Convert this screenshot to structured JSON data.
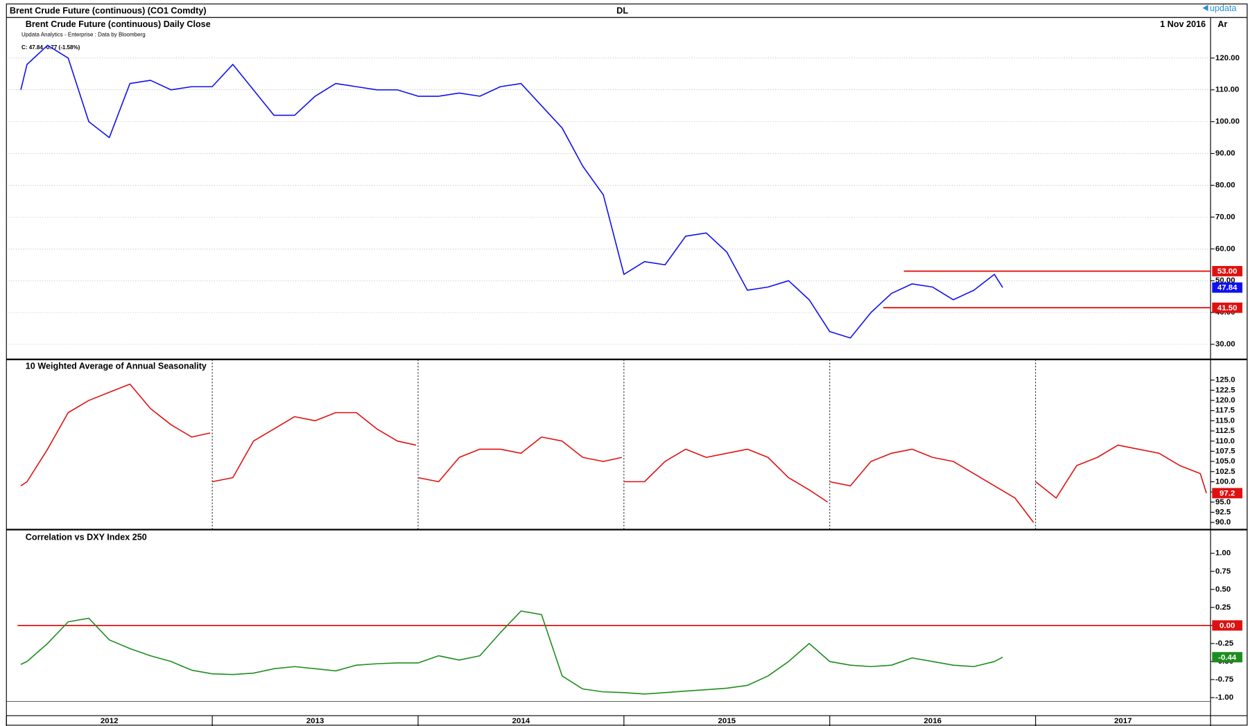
{
  "header": {
    "title": "Brent Crude Future (continuous) (CO1 Comdty)",
    "code": "DL",
    "brand": "updata"
  },
  "chart_data": [
    {
      "type": "line",
      "title": "Brent Crude Future (continuous) Daily Close",
      "date_label": "1 Nov 2016",
      "right_label": "Ar",
      "source": "Updata Analytics - Enterprise : Data by Bloomberg",
      "quote": "C: 47.84 -0.77 (-1.58%)",
      "color": "#1010ee",
      "grid": true,
      "xlim": [
        2012,
        2017.85
      ],
      "ylim": [
        25.25,
        128.75
      ],
      "yticks": [
        {
          "value": 30,
          "label": "30.00"
        },
        {
          "value": 40,
          "label": "40.00"
        },
        {
          "value": 50,
          "label": "50.00"
        },
        {
          "value": 60,
          "label": "60.00"
        },
        {
          "value": 70,
          "label": "70.00"
        },
        {
          "value": 80,
          "label": "80.00"
        },
        {
          "value": 90,
          "label": "90.00"
        },
        {
          "value": 100,
          "label": "100.00"
        },
        {
          "value": 110,
          "label": "110.00"
        },
        {
          "value": 120,
          "label": "120.00"
        }
      ],
      "x": [
        2012.07,
        2012.1,
        2012.2,
        2012.3,
        2012.4,
        2012.5,
        2012.6,
        2012.7,
        2012.8,
        2012.9,
        2013.0,
        2013.1,
        2013.2,
        2013.3,
        2013.4,
        2013.5,
        2013.6,
        2013.7,
        2013.8,
        2013.9,
        2014.0,
        2014.1,
        2014.2,
        2014.3,
        2014.4,
        2014.5,
        2014.6,
        2014.7,
        2014.8,
        2014.9,
        2015.0,
        2015.1,
        2015.2,
        2015.3,
        2015.4,
        2015.5,
        2015.6,
        2015.7,
        2015.8,
        2015.9,
        2016.0,
        2016.1,
        2016.2,
        2016.3,
        2016.4,
        2016.5,
        2016.6,
        2016.7,
        2016.8,
        2016.84
      ],
      "values": [
        110,
        118,
        124,
        120,
        100,
        95,
        112,
        113,
        110,
        111,
        111,
        118,
        110,
        102,
        102,
        108,
        112,
        111,
        110,
        110,
        108,
        108,
        109,
        108,
        111,
        112,
        105,
        98,
        86,
        77,
        52,
        56,
        55,
        64,
        65,
        59,
        47,
        48,
        50,
        44,
        34,
        32,
        40,
        46,
        49,
        48,
        44,
        47,
        52,
        47.84
      ],
      "hlines": [
        {
          "value": 53,
          "label": "53.00",
          "x0": 2016.36
        },
        {
          "value": 41.5,
          "label": "41.50",
          "x0": 2016.26
        }
      ]
    },
    {
      "type": "line",
      "title": "10 Weighted Average of Annual Seasonality",
      "color": "#e01010",
      "vgrid": true,
      "xlim": [
        2012,
        2017.85
      ],
      "ylim": [
        88.24,
        126.56
      ],
      "xticks": [
        2012,
        2013,
        2014,
        2015,
        2016,
        2017
      ],
      "yticks": [
        {
          "value": 90,
          "label": "90.0"
        },
        92.5,
        {
          "value": 95,
          "label": "95.0"
        },
        97.5,
        {
          "value": 100,
          "label": "100.0"
        },
        102.5,
        {
          "value": 105,
          "label": "105.0"
        },
        107.5,
        {
          "value": 110,
          "label": "110.0"
        },
        112.5,
        {
          "value": 115,
          "label": "115.0"
        },
        117.5,
        {
          "value": 120,
          "label": "120.0"
        },
        122.5,
        {
          "value": 125,
          "label": "125.0"
        }
      ],
      "x": [
        2012.07,
        2012.1,
        2012.2,
        2012.3,
        2012.4,
        2012.5,
        2012.6,
        2012.7,
        2012.8,
        2012.9,
        2012.99,
        2012.995,
        2013.0,
        2013.1,
        2013.2,
        2013.3,
        2013.4,
        2013.5,
        2013.6,
        2013.7,
        2013.8,
        2013.9,
        2013.99,
        2013.995,
        2014.0,
        2014.1,
        2014.2,
        2014.3,
        2014.4,
        2014.5,
        2014.6,
        2014.7,
        2014.8,
        2014.9,
        2014.99,
        2014.995,
        2015.0,
        2015.1,
        2015.2,
        2015.3,
        2015.4,
        2015.5,
        2015.6,
        2015.7,
        2015.8,
        2015.9,
        2015.99,
        2015.995,
        2016.0,
        2016.1,
        2016.2,
        2016.3,
        2016.4,
        2016.5,
        2016.6,
        2016.7,
        2016.8,
        2016.9,
        2016.99,
        2016.995,
        2017.0,
        2017.1,
        2017.2,
        2017.3,
        2017.4,
        2017.5,
        2017.6,
        2017.7,
        2017.8,
        2017.83
      ],
      "values": [
        99,
        100,
        108,
        117,
        120,
        122,
        124,
        118,
        114,
        111,
        112,
        null,
        100,
        101,
        110,
        113,
        116,
        115,
        117,
        117,
        113,
        110,
        109,
        null,
        101,
        100,
        106,
        108,
        108,
        107,
        111,
        110,
        106,
        105,
        106,
        null,
        100,
        100,
        105,
        108,
        106,
        107,
        108,
        106,
        101,
        98,
        95,
        null,
        100,
        99,
        105,
        107,
        108,
        106,
        105,
        102,
        99,
        96,
        90,
        null,
        100,
        96,
        104,
        106,
        109,
        108,
        107,
        104,
        102,
        97.2
      ]
    },
    {
      "type": "line",
      "title": "Correlation vs DXY Index 250",
      "color": "#1e8c1e",
      "xlim": [
        2012,
        2017.85
      ],
      "ylim": [
        -1.25,
        1.13
      ],
      "xticks": [
        2012,
        2013,
        2014,
        2015,
        2016,
        2017
      ],
      "yticks": [
        {
          "value": -1,
          "label": "-1.00"
        },
        {
          "value": -0.75,
          "label": "-0.75"
        },
        {
          "value": -0.5,
          "label": "-0.50"
        },
        {
          "value": -0.25,
          "label": "-0.25"
        },
        {
          "value": 0,
          "label": "0.00"
        },
        {
          "value": 0.25,
          "label": "0.25"
        },
        {
          "value": 0.5,
          "label": "0.50"
        },
        {
          "value": 0.75,
          "label": "0.75"
        },
        {
          "value": 1,
          "label": "1.00"
        }
      ],
      "x": [
        2012.07,
        2012.1,
        2012.2,
        2012.3,
        2012.4,
        2012.5,
        2012.6,
        2012.7,
        2012.8,
        2012.9,
        2013.0,
        2013.1,
        2013.2,
        2013.3,
        2013.4,
        2013.5,
        2013.6,
        2013.7,
        2013.8,
        2013.9,
        2014.0,
        2014.1,
        2014.2,
        2014.3,
        2014.4,
        2014.5,
        2014.6,
        2014.7,
        2014.8,
        2014.9,
        2015.0,
        2015.1,
        2015.2,
        2015.3,
        2015.4,
        2015.5,
        2015.6,
        2015.7,
        2015.8,
        2015.9,
        2016.0,
        2016.1,
        2016.2,
        2016.3,
        2016.4,
        2016.5,
        2016.6,
        2016.7,
        2016.8,
        2016.84
      ],
      "values": [
        -0.54,
        -0.5,
        -0.25,
        0.05,
        0.1,
        -0.2,
        -0.32,
        -0.42,
        -0.5,
        -0.62,
        -0.67,
        -0.68,
        -0.66,
        -0.6,
        -0.57,
        -0.6,
        -0.63,
        -0.55,
        -0.53,
        -0.52,
        -0.52,
        -0.42,
        -0.48,
        -0.42,
        -0.1,
        0.2,
        0.15,
        -0.7,
        -0.88,
        -0.92,
        -0.93,
        -0.95,
        -0.93,
        -0.91,
        -0.89,
        -0.87,
        -0.83,
        -0.7,
        -0.5,
        -0.25,
        -0.5,
        -0.55,
        -0.57,
        -0.55,
        -0.45,
        -0.5,
        -0.55,
        -0.57,
        -0.5,
        -0.44
      ],
      "hlines": [
        {
          "value": 0,
          "label": "0.00"
        }
      ]
    }
  ]
}
